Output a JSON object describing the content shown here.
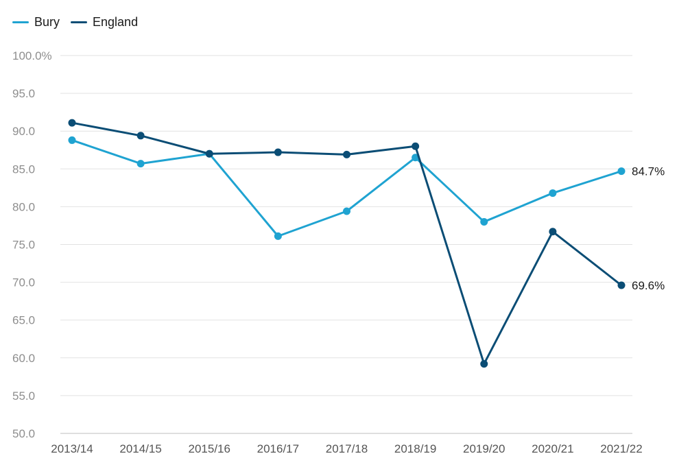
{
  "chart_data": {
    "type": "line",
    "categories": [
      "2013/14",
      "2014/15",
      "2015/16",
      "2016/17",
      "2017/18",
      "2018/19",
      "2019/20",
      "2020/21",
      "2021/22"
    ],
    "series": [
      {
        "name": "Bury",
        "color": "#1fa3d1",
        "values": [
          88.8,
          85.7,
          87.0,
          76.1,
          79.4,
          86.5,
          78.0,
          81.8,
          84.7
        ],
        "end_label": "84.7%"
      },
      {
        "name": "England",
        "color": "#0b4d75",
        "values": [
          91.1,
          89.4,
          87.0,
          87.2,
          86.9,
          88.0,
          59.2,
          76.7,
          69.6
        ],
        "end_label": "69.6%"
      }
    ],
    "y_ticks": [
      "100.0%",
      "95.0",
      "90.0",
      "85.0",
      "80.0",
      "75.0",
      "70.0",
      "65.0",
      "60.0",
      "55.0",
      "50.0"
    ],
    "y_tick_values": [
      100,
      95,
      90,
      85,
      80,
      75,
      70,
      65,
      60,
      55,
      50
    ],
    "ylim": [
      50,
      100
    ],
    "grid": true,
    "legend_position": "top-left"
  }
}
